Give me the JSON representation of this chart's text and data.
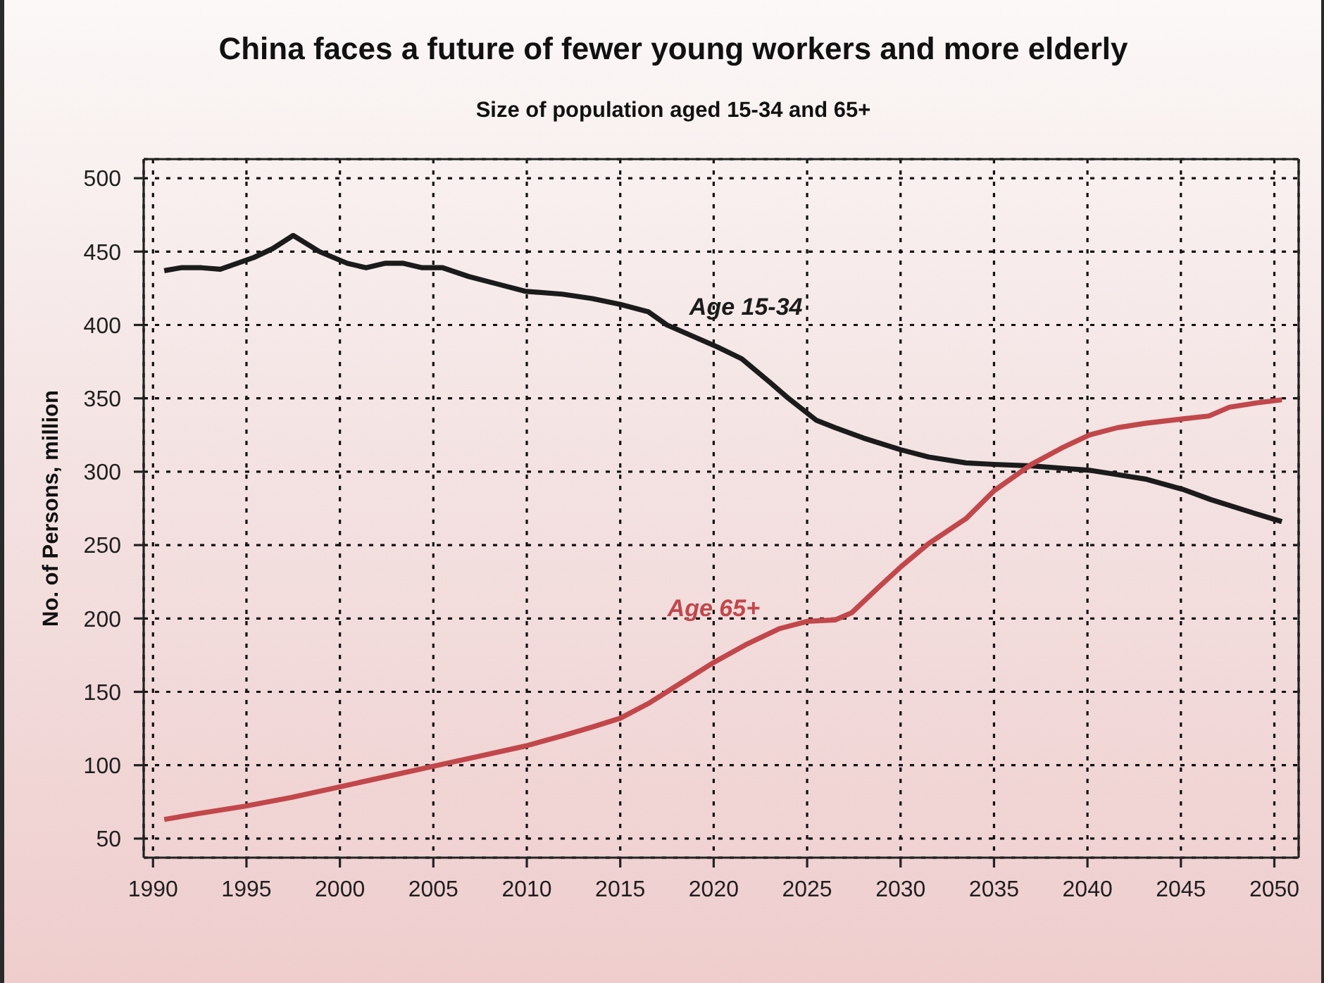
{
  "chart_data": {
    "type": "line",
    "title": "China faces a future of fewer young workers and more elderly",
    "subtitle": "Size of population aged 15-34 and 65+",
    "ylabel": "No. of Persons, million",
    "xlim": [
      1989.5,
      2051.3
    ],
    "xticks": [
      1990,
      1995,
      2000,
      2005,
      2010,
      2015,
      2020,
      2025,
      2030,
      2035,
      2040,
      2045,
      2050
    ],
    "ylim": [
      37,
      513
    ],
    "yticks": [
      50,
      100,
      150,
      200,
      250,
      300,
      350,
      400,
      450,
      500
    ],
    "grid": true,
    "marker": "none",
    "line_style": "solid",
    "series": [
      {
        "name": "Age 15-34",
        "color": "#1b1b1b",
        "x": [
          1990.6,
          1991.5,
          1992.6,
          1993.6,
          1995.4,
          1996.4,
          1997.5,
          1998.9,
          2000.4,
          2001.4,
          2002.4,
          2003.4,
          2004.4,
          2005.5,
          2006.9,
          2008.4,
          2009.9,
          2011.9,
          2013.5,
          2015,
          2016.5,
          2017.5,
          2020.2,
          2021.5,
          2023,
          2024,
          2025.5,
          2026.5,
          2028,
          2030,
          2031.5,
          2033.5,
          2035,
          2037,
          2040.1,
          2041.6,
          2043.1,
          2045.1,
          2046.6,
          2048.6,
          2050.4
        ],
        "values": [
          437,
          439,
          439,
          438,
          446,
          452,
          461,
          450,
          442,
          439,
          442,
          442,
          439,
          439,
          433,
          428,
          423,
          421,
          418,
          414,
          409,
          400,
          385,
          377,
          361,
          350,
          335,
          330,
          323,
          315,
          310,
          306,
          305,
          304,
          301,
          298,
          295,
          288,
          281,
          273,
          266
        ]
      },
      {
        "name": "Age 65+",
        "color": "#c1474b",
        "x": [
          1990.6,
          1992.4,
          1994.9,
          1997.4,
          1999.9,
          2002.4,
          2004.9,
          2007.4,
          2009.9,
          2011.9,
          2013.5,
          2015,
          2016.5,
          2018,
          2020,
          2021.7,
          2023.5,
          2025,
          2026.5,
          2027.4,
          2028.8,
          2030,
          2031.5,
          2033.5,
          2035,
          2037,
          2038.6,
          2040.1,
          2041.6,
          2043.1,
          2045.1,
          2046.5,
          2047.6,
          2049.1,
          2050.4
        ],
        "values": [
          63,
          67,
          72,
          78,
          85,
          92,
          99,
          106,
          113,
          120,
          126,
          132,
          142,
          154,
          170,
          182,
          193,
          198,
          199,
          204,
          221,
          235,
          251,
          268,
          287,
          305,
          316,
          325,
          330,
          333,
          336,
          338,
          344,
          347,
          349
        ]
      }
    ]
  }
}
